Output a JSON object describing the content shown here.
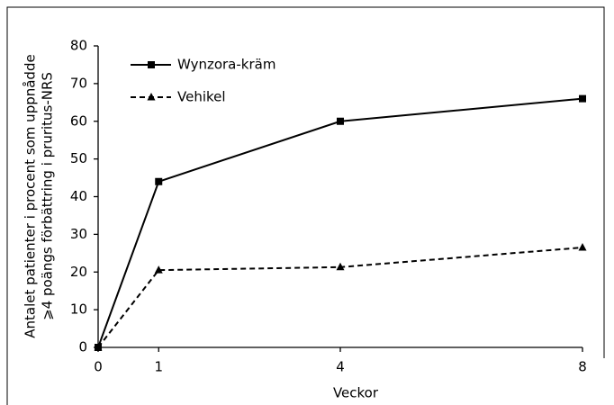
{
  "chart_data": {
    "type": "line",
    "ylabel": [
      "Antalet patienter i procent som uppnådde",
      "⩾4 poängs förbättring i pruritus-NRS"
    ],
    "xlabel": "Veckor",
    "x": [
      0,
      1,
      4,
      8
    ],
    "series": [
      {
        "name": "Wynzora-kräm",
        "color": "#000000",
        "line_style": "solid",
        "marker": "square",
        "values": [
          0,
          44,
          60,
          66
        ]
      },
      {
        "name": "Vehikel",
        "color": "#000000",
        "line_style": "dashed",
        "marker": "triangle",
        "values": [
          0,
          20.5,
          21.3,
          26.5
        ]
      }
    ],
    "xlim": [
      0,
      8
    ],
    "xticks": [
      0,
      1,
      4,
      8
    ],
    "ylim": [
      0,
      80
    ],
    "yticks": [
      0,
      10,
      20,
      30,
      40,
      50,
      60,
      70,
      80
    ],
    "grid": false,
    "legend": "upper left"
  }
}
